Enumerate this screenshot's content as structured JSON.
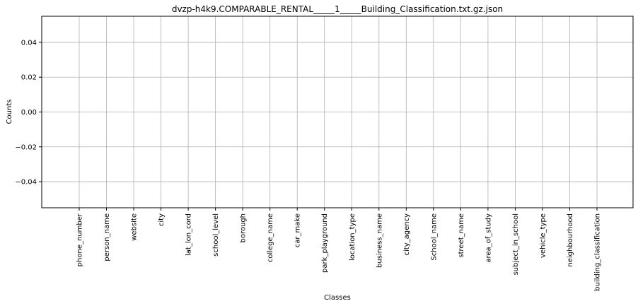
{
  "chart_data": {
    "type": "bar",
    "title": "dvzp-h4k9.COMPARABLE_RENTAL_____1_____Building_Classification.txt.gz.json",
    "xlabel": "Classes",
    "ylabel": "Counts",
    "categories": [
      "phone_number",
      "person_name",
      "website",
      "city",
      "lat_lon_cord",
      "school_level",
      "borough",
      "college_name",
      "car_make",
      "park_playground",
      "location_type",
      "business_name",
      "city_agency",
      "School_name",
      "street_name",
      "area_of_study",
      "subject_in_school",
      "vehicle_type",
      "neighbourhood",
      "building_classification"
    ],
    "values": [
      0,
      0,
      0,
      0,
      0,
      0,
      0,
      0,
      0,
      0,
      0,
      0,
      0,
      0,
      0,
      0,
      0,
      0,
      0,
      0
    ],
    "ylim": [
      -0.055,
      0.055
    ],
    "yticks": [
      "0.04",
      "0.02",
      "0.00",
      "−0.02",
      "−0.04"
    ],
    "ytick_values": [
      0.04,
      0.02,
      0.0,
      -0.02,
      -0.04
    ],
    "grid": true,
    "colors": {
      "grid": "#b0b0b0",
      "axis": "#000000",
      "bar": "#1f77b4"
    }
  }
}
